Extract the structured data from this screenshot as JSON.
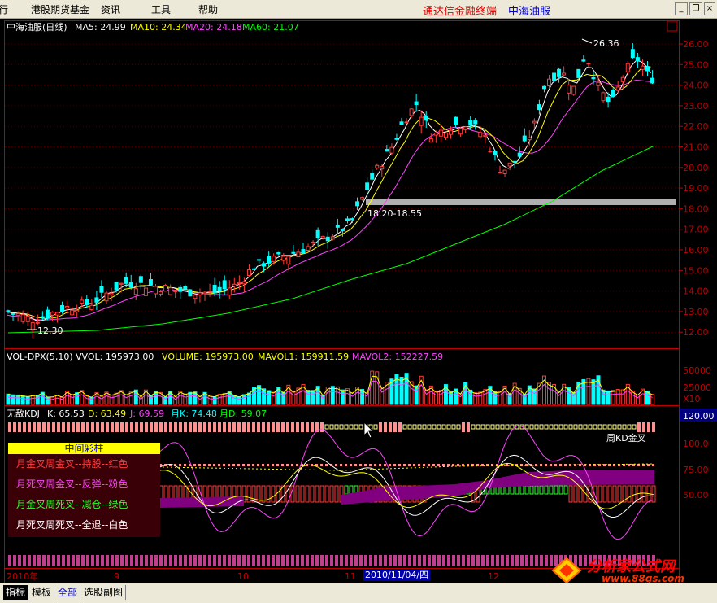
{
  "menu": {
    "items": [
      "行",
      "港股期货基金",
      "资讯",
      "工具",
      "帮助"
    ],
    "brand": "通达信金融终端",
    "stock_name": "中海油服"
  },
  "price_panel": {
    "title": "中海油服(日线)",
    "ma5": "MA5: 24.99",
    "ma10": "MA10: 24.34",
    "ma20": "MA20: 24.18",
    "ma60": "MA60: 21.07",
    "high_mark": "26.36",
    "low_mark": "12.30",
    "resistance_band": "18.20-18.55",
    "y_ticks": [
      "26.00",
      "25.00",
      "24.00",
      "23.00",
      "22.00",
      "21.00",
      "20.00",
      "19.00",
      "18.00",
      "17.00",
      "16.00",
      "15.00",
      "14.00",
      "13.00",
      "12.00"
    ]
  },
  "volume_panel": {
    "title": "VOL-DPX(5,10)",
    "vvol": "VVOL: 195973.00",
    "volume": "VOLUME: 195973.00",
    "mavol1": "MAVOL1: 159911.59",
    "mavol2": "MAVOL2: 152227.59",
    "y_ticks": [
      "50000",
      "25000"
    ],
    "unit": "X10"
  },
  "kdj_panel": {
    "title": "无敌KDJ",
    "k": "K: 65.53",
    "d": "D: 63.49",
    "j": "J: 69.59",
    "month_k": "月K: 74.48",
    "month_d": "月D: 59.07",
    "top_value": "120.00",
    "signal_label": "周KD金叉",
    "y_ticks": [
      "100.0",
      "75.00",
      "50.00"
    ]
  },
  "legend": {
    "header": "中间彩柱",
    "rows": [
      {
        "text": "月金叉周金叉--持股--红色",
        "color": "#ff3b3b"
      },
      {
        "text": "月死叉周金叉--反弹--粉色",
        "color": "#ff44ff"
      },
      {
        "text": "月金叉周死叉--减仓--绿色",
        "color": "#33ff33"
      },
      {
        "text": "月死叉周死叉--全退--白色",
        "color": "#ffffff"
      }
    ]
  },
  "x_axis": {
    "labels": [
      "2010年",
      "9",
      "10",
      "11",
      "12"
    ],
    "cursor_date": "2010/11/04/四"
  },
  "footer": {
    "tabs": [
      "指标",
      "模板",
      "全部",
      "选股副图"
    ]
  },
  "watermark": {
    "title": "分析家公式网",
    "url": "www.88gs.com"
  },
  "colors": {
    "up": "#ff3b3b",
    "down": "#00ffff",
    "ma5": "#ffffff",
    "ma10": "#ffff00",
    "ma20": "#ff44ff",
    "ma60": "#00ff00",
    "axis": "#c00000"
  }
}
